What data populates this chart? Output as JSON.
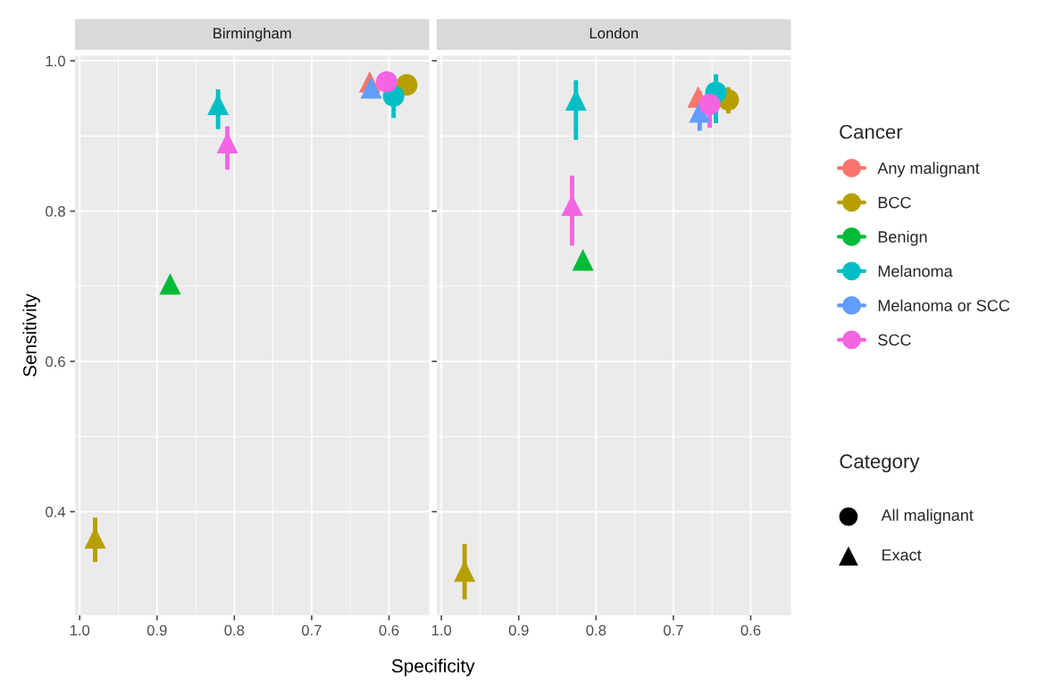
{
  "chart_data": [
    {
      "type": "scatter",
      "title": "Birmingham",
      "xlabel": "Specificity",
      "ylabel": "Sensitivity",
      "xlim": [
        1.006,
        0.548
      ],
      "ylim": [
        0.262,
        1.007
      ],
      "xticks": [
        {
          "value": 1.0,
          "label": "1.0"
        },
        0.9,
        0.8,
        0.7,
        0.6
      ],
      "yticks": [
        0.4,
        0.6,
        0.8,
        {
          "value": 1.0,
          "label": "1.0"
        }
      ],
      "grid": true,
      "legend": "right",
      "legend_title": "Cancer",
      "series": [
        {
          "name": "Any malignant",
          "color": "#f8766d",
          "marker": "triangle",
          "x": [
            0.625
          ],
          "values": [
            0.972
          ]
        },
        {
          "name": "BCC",
          "color": "#b79f00",
          "marker": "triangle",
          "x": [
            0.98
          ],
          "values": [
            0.365
          ],
          "errors": [
            [
              0.333,
              0.392
            ]
          ]
        },
        {
          "name": "Benign",
          "color": "#00ba38",
          "marker": "triangle",
          "x": [
            0.883
          ],
          "values": [
            0.703
          ]
        },
        {
          "name": "Melanoma",
          "color": "#00bfc4",
          "marker": "triangle",
          "x": [
            0.821
          ],
          "values": [
            0.942
          ],
          "errors": [
            [
              0.909,
              0.962
            ]
          ]
        },
        {
          "name": "Melanoma or SCC",
          "color": "#619cff",
          "marker": "triangle",
          "x": [
            0.623
          ],
          "values": [
            0.964
          ],
          "errors": [
            [
              0.95,
              0.97
            ]
          ]
        },
        {
          "name": "SCC",
          "color": "#f564e3",
          "marker": "triangle",
          "x": [
            0.809
          ],
          "values": [
            0.891
          ],
          "errors": [
            [
              0.855,
              0.913
            ]
          ]
        },
        {
          "color": "#b79f00",
          "marker": "circle",
          "x": [
            0.577
          ],
          "values": [
            0.968
          ]
        },
        {
          "color": "#00bfc4",
          "marker": "circle",
          "x": [
            0.594
          ],
          "values": [
            0.953
          ],
          "errors": [
            [
              0.924,
              0.97
            ]
          ]
        },
        {
          "color": "#f564e3",
          "marker": "circle",
          "x": [
            0.603
          ],
          "values": [
            0.972
          ]
        }
      ]
    },
    {
      "type": "scatter",
      "title": "London",
      "xlim": [
        1.006,
        0.548
      ],
      "ylim": [
        0.262,
        1.007
      ],
      "xticks": [
        {
          "value": 1.0,
          "label": "1.0"
        },
        0.9,
        0.8,
        0.7,
        0.6
      ],
      "yticks": [
        0.4,
        0.6,
        0.8,
        {
          "value": 1.0,
          "label": "1.0"
        }
      ],
      "tick_labels": "x",
      "grid": true,
      "legend": "right",
      "annotations": [
        "Category",
        "All malignant",
        "Exact"
      ],
      "series": [
        {
          "name": "Any malignant",
          "color": "#f8766d",
          "marker": "triangle",
          "x": [
            0.668
          ],
          "values": [
            0.952
          ]
        },
        {
          "name": "BCC",
          "color": "#b79f00",
          "marker": "triangle",
          "x": [
            0.97
          ],
          "values": [
            0.321
          ],
          "errors": [
            [
              0.283,
              0.357
            ]
          ]
        },
        {
          "name": "Benign",
          "color": "#00ba38",
          "marker": "triangle",
          "x": [
            0.817
          ],
          "values": [
            0.735
          ]
        },
        {
          "name": "Melanoma",
          "color": "#00bfc4",
          "marker": "triangle",
          "x": [
            0.826
          ],
          "values": [
            0.948
          ],
          "errors": [
            [
              0.895,
              0.974
            ]
          ]
        },
        {
          "name": "Melanoma or SCC",
          "color": "#619cff",
          "marker": "triangle",
          "x": [
            0.666
          ],
          "values": [
            0.932
          ],
          "errors": [
            [
              0.907,
              0.96
            ]
          ]
        },
        {
          "name": "SCC",
          "color": "#f564e3",
          "marker": "triangle",
          "x": [
            0.831
          ],
          "values": [
            0.808
          ],
          "errors": [
            [
              0.754,
              0.847
            ]
          ]
        },
        {
          "color": "#b79f00",
          "marker": "circle",
          "x": [
            0.629
          ],
          "values": [
            0.948
          ],
          "errors": [
            [
              0.93,
              0.965
            ]
          ]
        },
        {
          "color": "#00bfc4",
          "marker": "circle",
          "x": [
            0.645
          ],
          "values": [
            0.958
          ],
          "errors": [
            [
              0.917,
              0.982
            ]
          ]
        },
        {
          "color": "#f564e3",
          "marker": "circle",
          "x": [
            0.653
          ],
          "values": [
            0.942
          ],
          "errors": [
            [
              0.911,
              0.966
            ]
          ]
        }
      ]
    }
  ]
}
